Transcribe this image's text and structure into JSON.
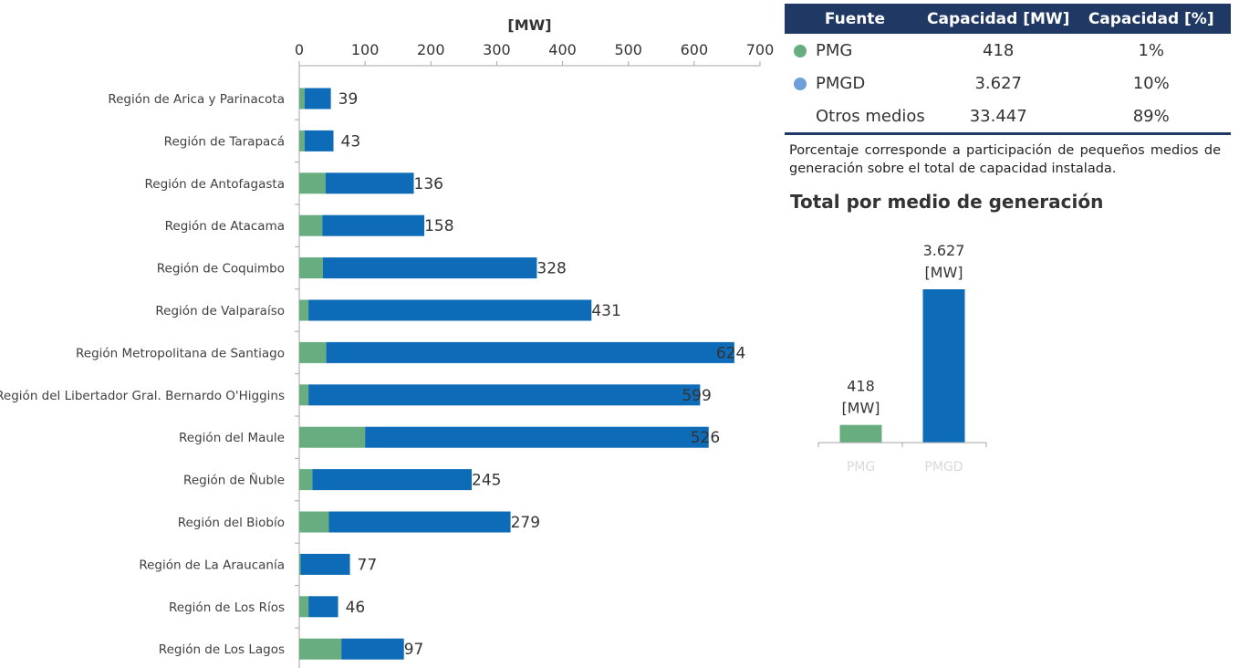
{
  "colors": {
    "pmg": "#68ad80",
    "pmgd": "#0e6bb7",
    "header_bg": "#1f3864",
    "pmgd_marker": "#6f9fd8",
    "axis": "#a6a6a6"
  },
  "chart_data": [
    {
      "type": "bar",
      "orientation": "horizontal",
      "stacked": true,
      "xlabel": "[MW]",
      "xlim": [
        0,
        700
      ],
      "x_ticks": [
        0,
        100,
        200,
        300,
        400,
        500,
        600,
        700
      ],
      "categories": [
        "Región de Arica y Parinacota",
        "Región de Tarapacá",
        "Región de Antofagasta",
        "Región de Atacama",
        "Región de Coquimbo",
        "Región de Valparaíso",
        "Región Metropolitana de Santiago",
        "Región del Libertador  Gral. Bernardo O'Higgins",
        "Región del Maule",
        "Región de Ñuble",
        "Región del Biobío",
        "Región de La Araucanía",
        "Región de Los Ríos",
        "Región de Los Lagos"
      ],
      "series": [
        {
          "values": [
            8,
            8,
            40,
            35,
            36,
            14,
            41,
            14,
            100,
            20,
            45,
            2,
            14,
            64
          ]
        },
        {
          "values": [
            40,
            44,
            134,
            155,
            325,
            430,
            620,
            595,
            522,
            242,
            276,
            75,
            45,
            95
          ]
        }
      ],
      "data_labels": [
        "39",
        "43",
        "136",
        "158",
        "328",
        "431",
        "624",
        "599",
        "526",
        "245",
        "279",
        "77",
        "46",
        "97"
      ]
    },
    {
      "type": "bar",
      "title": "Total por medio de generación",
      "categories": [
        "PMG",
        "PMGD"
      ],
      "values": [
        418,
        3627
      ],
      "ylim": [
        0,
        3627
      ],
      "data_labels": [
        {
          "value": "418",
          "unit": "[MW]"
        },
        {
          "value": "3.627",
          "unit": "[MW]"
        }
      ]
    }
  ],
  "table": {
    "headers": [
      "Fuente",
      "Capacidad [MW]",
      "Capacidad [%]"
    ],
    "rows": [
      {
        "name": "PMG",
        "mw": "418",
        "pct": "1%",
        "marker": "#68ad80"
      },
      {
        "name": "PMGD",
        "mw": "3.627",
        "pct": "10%",
        "marker": "#6f9fd8"
      },
      {
        "name": "Otros medios",
        "mw": "33.447",
        "pct": "89%",
        "marker": ""
      }
    ]
  },
  "footnote": "Porcentaje corresponde a participación de pequeños medios de generación sobre el total de capacidad instalada."
}
